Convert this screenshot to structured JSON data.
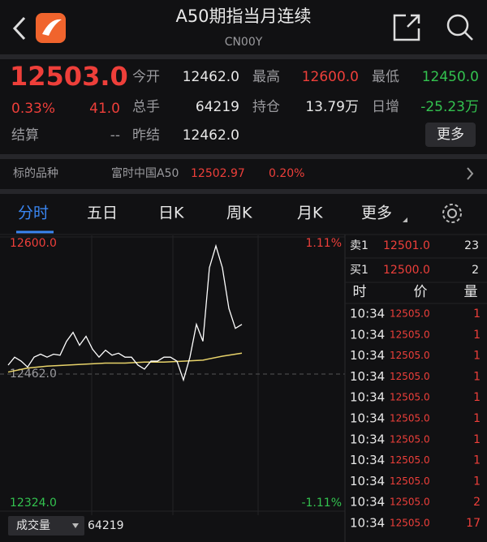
{
  "header": {
    "title": "A50期指当月连续",
    "subtitle": "CN00Y"
  },
  "quote": {
    "price": "12503.0",
    "change_pct": "0.33%",
    "change": "41.0",
    "fields": [
      {
        "label": "今开",
        "value": "12462.0"
      },
      {
        "label": "最高",
        "value": "12600.0"
      },
      {
        "label": "最低",
        "value": "12450.0"
      },
      {
        "label": "总手",
        "value": "64219"
      },
      {
        "label": "持仓",
        "value": "13.79万"
      },
      {
        "label": "日增",
        "value": "-25.23万"
      },
      {
        "label": "结算",
        "value": "--"
      },
      {
        "label": "昨结",
        "value": "12462.0"
      }
    ],
    "more": "更多"
  },
  "underlying": {
    "label": "标的品种",
    "name": "富时中国A50",
    "price": "12502.97",
    "change_pct": "0.20%"
  },
  "tabs": [
    "分时",
    "五日",
    "日K",
    "周K",
    "月K",
    "更多"
  ],
  "intraday": {
    "yticks": [
      {
        "value": 12324,
        "label": "12324.0"
      },
      {
        "value": 12462,
        "label": "12462.0"
      },
      {
        "value": 12600,
        "label": "12600.0"
      }
    ],
    "top_pct": "1.11%",
    "bottom_pct": "-1.11%",
    "price": [
      12471,
      12479,
      12475,
      12469,
      12479,
      12482,
      12479,
      12482,
      12481,
      12495,
      12504,
      12491,
      12500,
      12487,
      12479,
      12486,
      12481,
      12483,
      12479,
      12479,
      12471,
      12467,
      12475,
      12475,
      12479,
      12479,
      12475,
      12456,
      12479,
      12512,
      12495,
      12569,
      12591,
      12569,
      12528,
      12508,
      12512
    ],
    "avg": [
      12464,
      12468,
      12470,
      12471,
      12472,
      12473,
      12473,
      12474,
      12474,
      12475,
      12476,
      12480,
      12483
    ]
  },
  "volume": {
    "label": "成交量",
    "value": "64219"
  },
  "orderbook": {
    "levels": [
      {
        "label": "卖1",
        "price": "12501.0",
        "qty": "23"
      },
      {
        "label": "买1",
        "price": "12500.0",
        "qty": "2"
      }
    ],
    "columns": [
      "时",
      "价",
      "量"
    ],
    "trades": [
      [
        "10:34",
        "12505.0",
        "1"
      ],
      [
        "10:34",
        "12505.0",
        "1"
      ],
      [
        "10:34",
        "12505.0",
        "1"
      ],
      [
        "10:34",
        "12505.0",
        "1"
      ],
      [
        "10:34",
        "12505.0",
        "1"
      ],
      [
        "10:34",
        "12505.0",
        "1"
      ],
      [
        "10:34",
        "12505.0",
        "1"
      ],
      [
        "10:34",
        "12505.0",
        "1"
      ],
      [
        "10:34",
        "12505.0",
        "1"
      ],
      [
        "10:34",
        "12505.0",
        "2"
      ],
      [
        "10:34",
        "12505.0",
        "17"
      ]
    ]
  }
}
